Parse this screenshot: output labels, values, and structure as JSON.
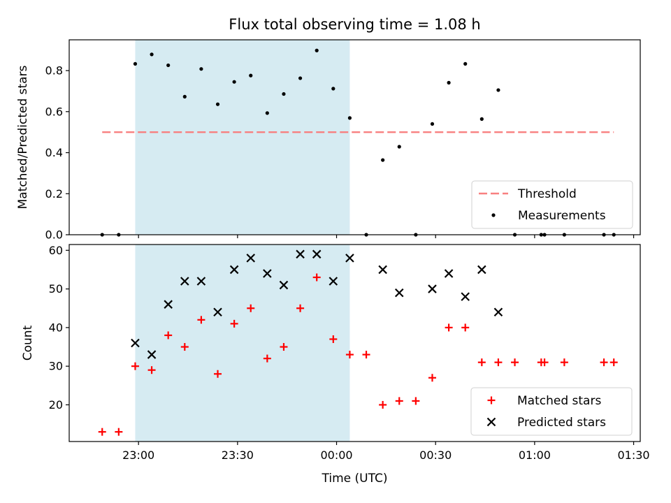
{
  "chart_data": [
    {
      "type": "scatter",
      "title": "Flux total observing time = 1.08 h",
      "xlabel": "",
      "ylabel": "Matched/Predicted stars",
      "ylim": [
        0,
        0.95
      ],
      "yticks": [
        "0.0",
        "0.2",
        "0.4",
        "0.6",
        "0.8"
      ],
      "ytick_values": [
        0,
        0.2,
        0.4,
        0.6,
        0.8
      ],
      "shaded_interval": [
        "22:59",
        "00:04"
      ],
      "threshold": {
        "name": "Threshold",
        "value": 0.5,
        "x_range": [
          "22:49",
          "01:24"
        ],
        "style": "dashed",
        "color": "#f88080"
      },
      "series": [
        {
          "name": "Measurements",
          "color": "#000000",
          "marker": "dot",
          "x": [
            "22:49",
            "22:54",
            "22:59",
            "23:04",
            "23:09",
            "23:14",
            "23:19",
            "23:24",
            "23:29",
            "23:34",
            "23:39",
            "23:44",
            "23:49",
            "23:54",
            "23:59",
            "00:04",
            "00:09",
            "00:14",
            "00:19",
            "00:24",
            "00:29",
            "00:34",
            "00:39",
            "00:44",
            "00:49",
            "00:54",
            "01:02",
            "01:03",
            "01:09",
            "01:21",
            "01:24"
          ],
          "y": [
            0,
            0,
            0.833,
            0.879,
            0.826,
            0.673,
            0.808,
            0.636,
            0.745,
            0.776,
            0.593,
            0.686,
            0.763,
            0.898,
            0.712,
            0.569,
            0,
            0.364,
            0.429,
            0,
            0.54,
            0.741,
            0.833,
            0.564,
            0.705,
            0,
            0,
            0,
            0,
            0,
            0
          ]
        }
      ],
      "legend": {
        "loc": "lower right",
        "entries": [
          "Threshold",
          "Measurements"
        ]
      }
    },
    {
      "type": "scatter",
      "title": "",
      "xlabel": "Time (UTC)",
      "ylabel": "Count",
      "ylim": [
        10.5,
        61.5
      ],
      "yticks": [
        "20",
        "30",
        "40",
        "50",
        "60"
      ],
      "ytick_values": [
        20,
        30,
        40,
        50,
        60
      ],
      "xticks": [
        "23:00",
        "23:30",
        "00:00",
        "00:30",
        "01:00",
        "01:30"
      ],
      "xtick_values": [
        "23:00",
        "23:30",
        "00:00",
        "00:30",
        "01:00",
        "01:30"
      ],
      "xlim": [
        "22:39",
        "01:32"
      ],
      "shaded_interval": [
        "22:59",
        "00:04"
      ],
      "series": [
        {
          "name": "Matched stars",
          "color": "#ff0000",
          "marker": "plus",
          "x": [
            "22:49",
            "22:54",
            "22:59",
            "23:04",
            "23:09",
            "23:14",
            "23:19",
            "23:24",
            "23:29",
            "23:34",
            "23:39",
            "23:44",
            "23:49",
            "23:54",
            "23:59",
            "00:04",
            "00:09",
            "00:14",
            "00:19",
            "00:24",
            "00:29",
            "00:34",
            "00:39",
            "00:44",
            "00:49",
            "00:54",
            "01:02",
            "01:03",
            "01:09",
            "01:21",
            "01:24"
          ],
          "y": [
            13,
            13,
            30,
            29,
            38,
            35,
            42,
            28,
            41,
            45,
            32,
            35,
            45,
            53,
            37,
            33,
            33,
            20,
            21,
            21,
            27,
            40,
            40,
            31,
            31,
            31,
            31,
            31,
            31,
            31,
            31
          ]
        },
        {
          "name": "Predicted stars",
          "color": "#000000",
          "marker": "x",
          "x": [
            "22:59",
            "23:04",
            "23:09",
            "23:14",
            "23:19",
            "23:24",
            "23:29",
            "23:34",
            "23:39",
            "23:44",
            "23:49",
            "23:54",
            "23:59",
            "00:04",
            "00:14",
            "00:19",
            "00:29",
            "00:34",
            "00:39",
            "00:44",
            "00:49"
          ],
          "y": [
            36,
            33,
            46,
            52,
            52,
            44,
            55,
            58,
            54,
            51,
            59,
            59,
            52,
            58,
            55,
            49,
            50,
            54,
            48,
            55,
            44
          ]
        }
      ],
      "legend": {
        "loc": "lower right",
        "entries": [
          "Matched stars",
          "Predicted stars"
        ]
      }
    }
  ]
}
